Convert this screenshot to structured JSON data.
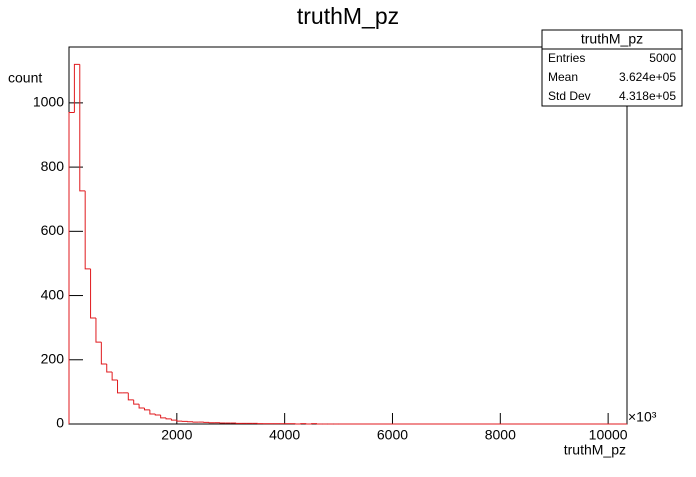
{
  "chart_data": {
    "type": "histogram",
    "title": "truthM_pz",
    "x_label": "truthM_pz",
    "x_multiplier": "×10³",
    "y_label": "count",
    "color": "#e0191d",
    "bins": [
      0,
      100,
      200,
      300,
      400,
      500,
      600,
      700,
      800,
      900,
      1000,
      1100,
      1200,
      1300,
      1400,
      1500,
      1600,
      1700,
      1800,
      1900,
      2000,
      2100,
      2200,
      2300,
      2400,
      2500,
      2600,
      2700,
      2800,
      2900,
      3000,
      3100,
      3200,
      3300,
      3400,
      3500,
      3600,
      3700,
      3800,
      3900,
      4000,
      4100,
      4200,
      4300,
      4400,
      4500,
      4600,
      4700,
      4800,
      4900,
      5000
    ],
    "values": [
      970,
      1120,
      726,
      483,
      330,
      255,
      187,
      162,
      137,
      97,
      97,
      75,
      62,
      50,
      44,
      31,
      28,
      19,
      16,
      12,
      9,
      8,
      7,
      6,
      6,
      5,
      4,
      4,
      3,
      3,
      3,
      2,
      2,
      2,
      2,
      1,
      1,
      1,
      1,
      1,
      1,
      1,
      0,
      1,
      0,
      1,
      0,
      0,
      0,
      0
    ],
    "xlim": [
      0,
      10350
    ],
    "ylim": [
      0,
      1174
    ],
    "xticks": [
      2000,
      4000,
      6000,
      8000,
      10000
    ],
    "yticks": [
      0,
      200,
      400,
      600,
      800,
      1000
    ],
    "stats": {
      "title": "truthM_pz",
      "rows": [
        [
          "Entries",
          "5000"
        ],
        [
          "Mean",
          "3.624e+05"
        ],
        [
          "Std Dev",
          "4.318e+05"
        ]
      ]
    }
  }
}
